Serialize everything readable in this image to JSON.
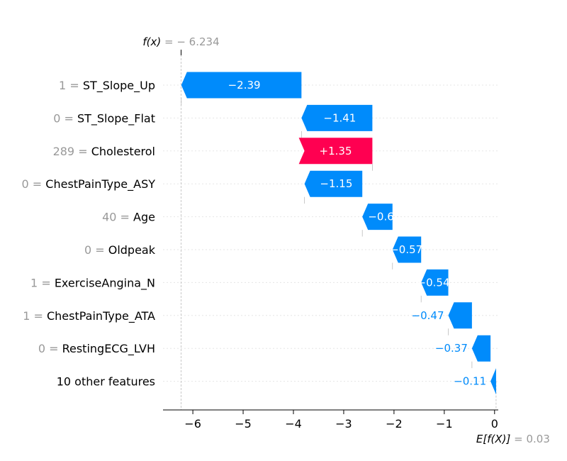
{
  "chart_data": {
    "type": "waterfall",
    "colors": {
      "positive": "#ff0051",
      "negative": "#008bfb",
      "value_text": "#999999"
    },
    "fx": {
      "label": "f(x)",
      "value_text": "= − 6.234",
      "value": -6.234
    },
    "expected": {
      "label": "E[f(X)]",
      "value_text": "= 0.03",
      "value": 0.03
    },
    "x_ticks": [
      {
        "value": -6,
        "label": "−6"
      },
      {
        "value": -5,
        "label": "−5"
      },
      {
        "value": -4,
        "label": "−4"
      },
      {
        "value": -3,
        "label": "−3"
      },
      {
        "value": -2,
        "label": "−2"
      },
      {
        "value": -1,
        "label": "−1"
      },
      {
        "value": 0,
        "label": "0"
      }
    ],
    "xlim": [
      -6.6,
      0.06
    ],
    "features": [
      {
        "feature_value": "1",
        "feature_name": "ST_Slope_Up",
        "contribution": -2.39,
        "label": "−2.39"
      },
      {
        "feature_value": "0",
        "feature_name": "ST_Slope_Flat",
        "contribution": -1.41,
        "label": "−1.41"
      },
      {
        "feature_value": "289",
        "feature_name": "Cholesterol",
        "contribution": 1.35,
        "label": "+1.35"
      },
      {
        "feature_value": "0",
        "feature_name": "ChestPainType_ASY",
        "contribution": -1.15,
        "label": "−1.15"
      },
      {
        "feature_value": "40",
        "feature_name": "Age",
        "contribution": -0.6,
        "label": "−0.6"
      },
      {
        "feature_value": "0",
        "feature_name": "Oldpeak",
        "contribution": -0.57,
        "label": "−0.57"
      },
      {
        "feature_value": "1",
        "feature_name": "ExerciseAngina_N",
        "contribution": -0.54,
        "label": "−0.54"
      },
      {
        "feature_value": "1",
        "feature_name": "ChestPainType_ATA",
        "contribution": -0.47,
        "label": "−0.47"
      },
      {
        "feature_value": "0",
        "feature_name": "RestingECG_LVH",
        "contribution": -0.37,
        "label": "−0.37"
      },
      {
        "feature_value": "",
        "feature_name": "10 other features",
        "contribution": -0.11,
        "label": "−0.11"
      }
    ]
  }
}
